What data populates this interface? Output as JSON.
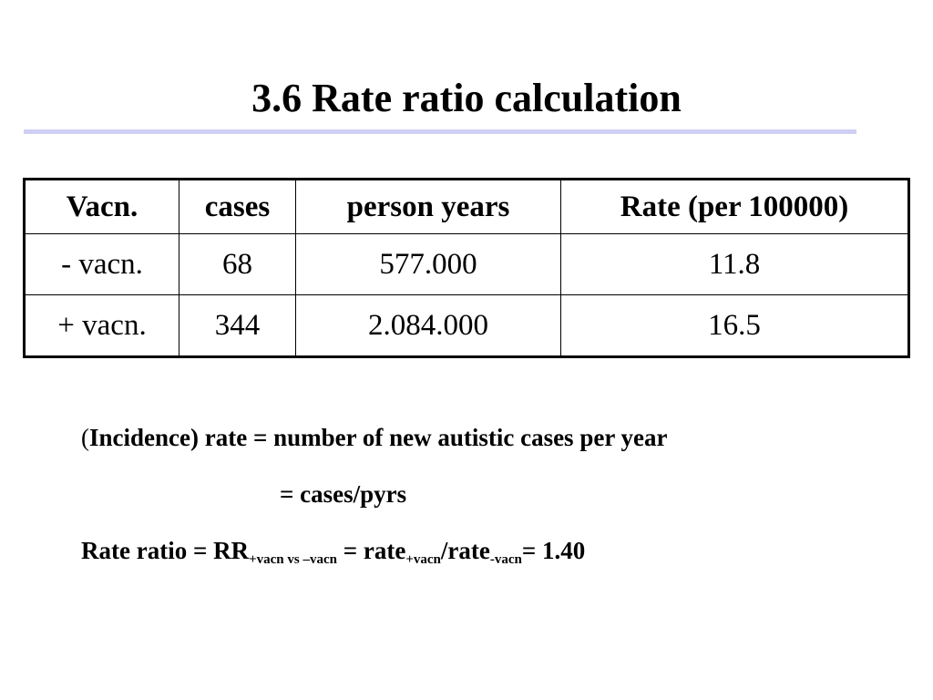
{
  "slide": {
    "title": "3.6 Rate ratio calculation"
  },
  "table": {
    "headers": [
      "Vacn.",
      "cases",
      "person years",
      "Rate (per 100000)"
    ],
    "rows": [
      [
        "- vacn.",
        "68",
        "577.000",
        "11.8"
      ],
      [
        "+ vacn.",
        "344",
        "2.084.000",
        "16.5"
      ]
    ]
  },
  "notes": {
    "incidence_open_paren": "(",
    "incidence_text": "Incidence) rate = number of new autistic cases per year",
    "cases_pyrs": "= cases/pyrs",
    "rr_label": "Rate ratio = RR",
    "rr_sub": "+vacn vs –vacn",
    "rr_eq_rate": " = rate",
    "rate_sub_plus": "+vacn",
    "rate_slash": "/rate",
    "rate_sub_minus": "-vacn",
    "rr_result": "= 1.40"
  }
}
